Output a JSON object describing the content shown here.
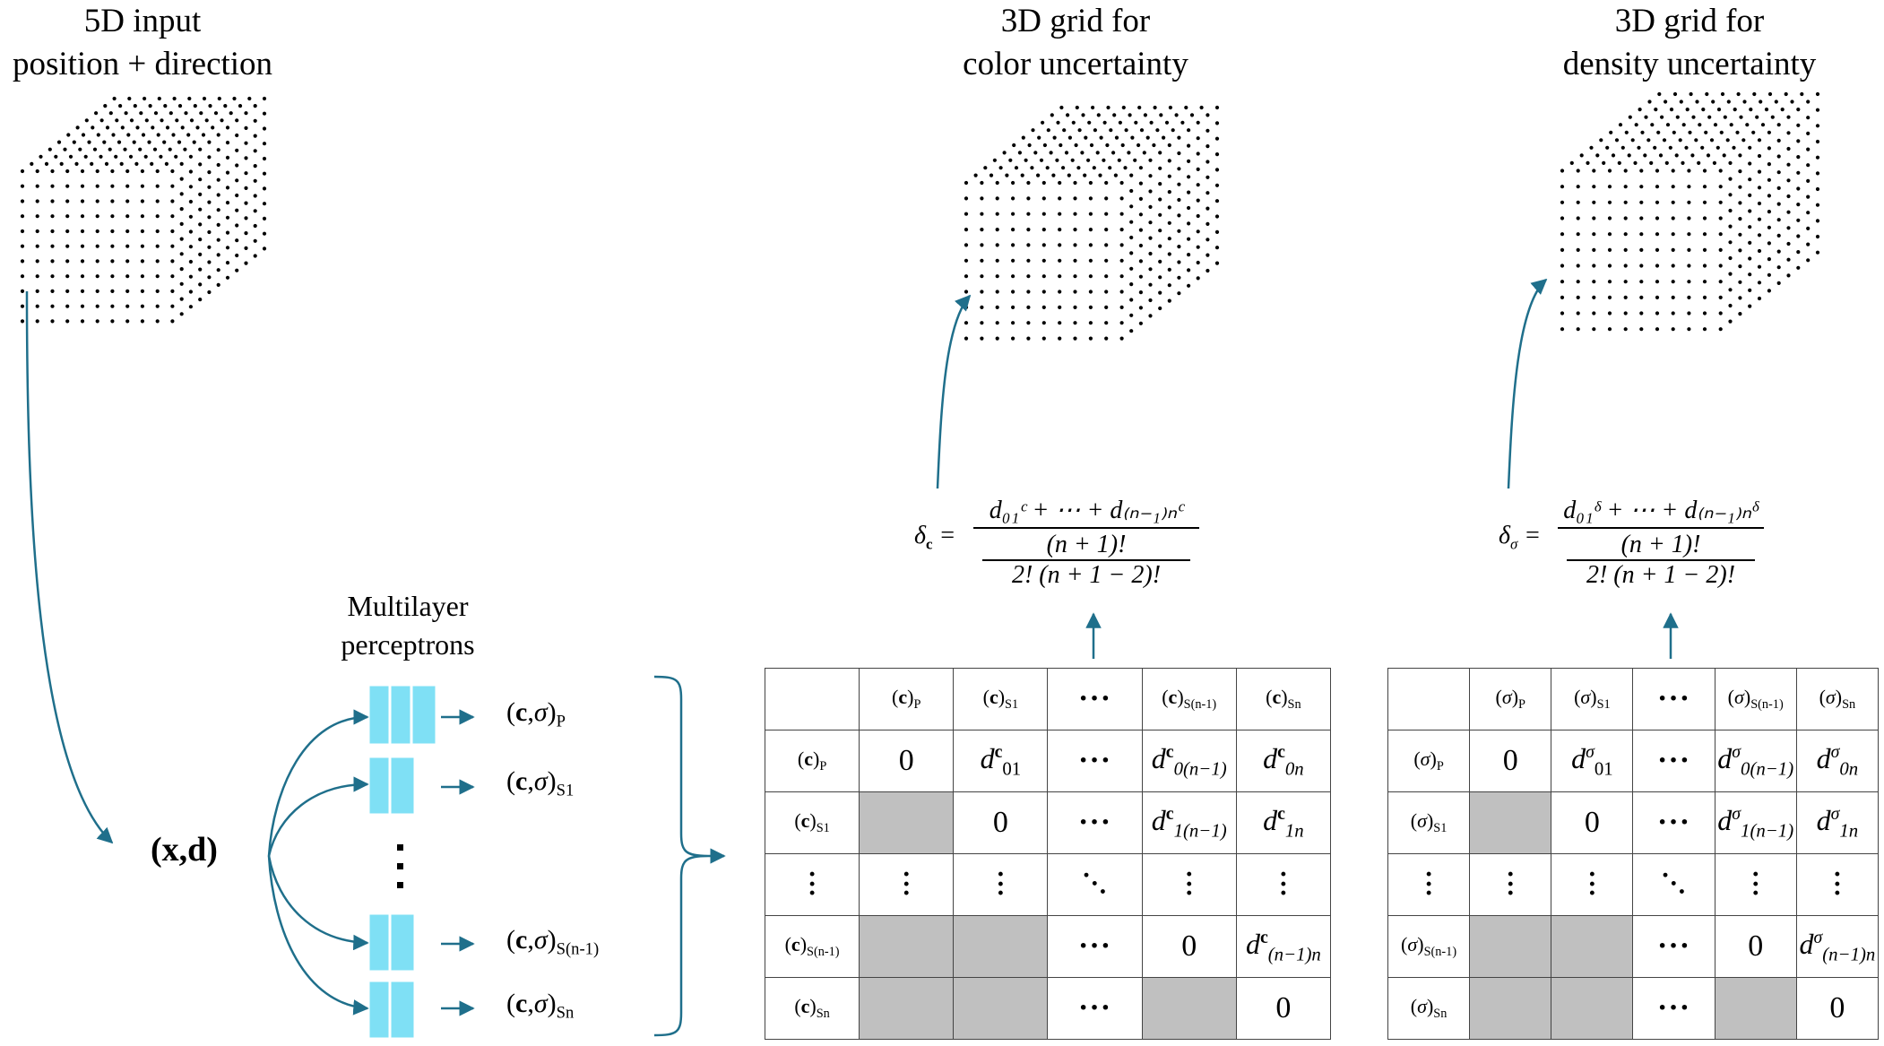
{
  "titles": {
    "input_line1": "5D input",
    "input_line2": "position + direction",
    "color_line1": "3D grid for",
    "color_line2": "color uncertainty",
    "density_line1": "3D grid for",
    "density_line2": "density uncertainty",
    "mlp_line1": "Multilayer",
    "mlp_line2": "perceptrons"
  },
  "input_label": "(x,d)",
  "mlp_outputs": [
    {
      "sym": "c",
      "sub": "P"
    },
    {
      "sym": "c",
      "sub": "S1"
    },
    {
      "sym": "c",
      "sub": "S(n-1)"
    },
    {
      "sym": "c",
      "sub": "Sn"
    }
  ],
  "formulas": {
    "color_lhs": "δ",
    "color_lhs_sub": "c",
    "density_lhs": "δ",
    "density_lhs_sub": "σ",
    "num_color": "d₀₁ᶜ + ⋯ + d₍ₙ₋₁₎ₙᶜ",
    "num_density": "d₀₁ᵟ + ⋯ + d₍ₙ₋₁₎ₙᵟ",
    "mid": "(n + 1)!",
    "den": "2! (n + 1 − 2)!"
  },
  "tables": {
    "color": {
      "prefix": "c",
      "headers": [
        "P",
        "S1",
        "S(n-1)",
        "Sn"
      ],
      "sup": "c"
    },
    "density": {
      "prefix": "σ",
      "headers": [
        "P",
        "S1",
        "S(n-1)",
        "Sn"
      ],
      "sup": "σ"
    }
  },
  "colors": {
    "arrow": "#1f6f8b",
    "mlp_block": "#7fe0f5",
    "gray_cell": "#c0c0c0"
  },
  "grid_icons": [
    "dot-cube",
    "dot-cube",
    "dot-cube"
  ]
}
